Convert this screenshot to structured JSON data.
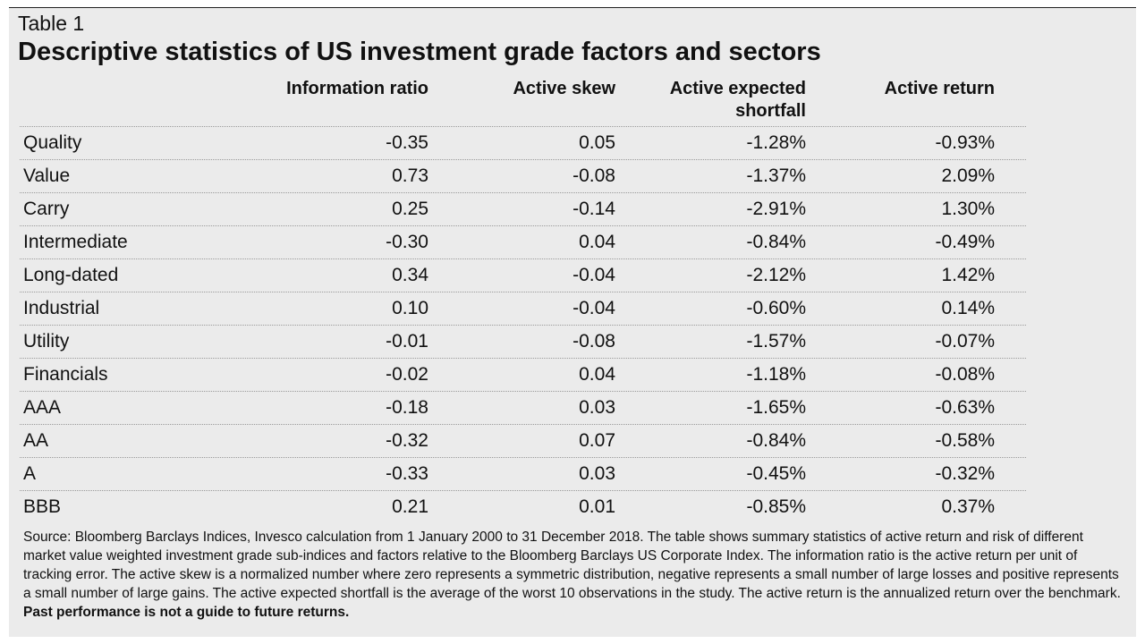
{
  "table": {
    "label": "Table 1",
    "title": "Descriptive statistics of US investment grade factors and sectors",
    "headers": {
      "information_ratio": "Information ratio",
      "active_skew": "Active skew",
      "active_expected_shortfall": "Active expected shortfall",
      "active_return": "Active return"
    },
    "rows": [
      {
        "name": "Quality",
        "ir": "-0.35",
        "skew": "0.05",
        "es": "-1.28%",
        "ret": "-0.93%"
      },
      {
        "name": "Value",
        "ir": "0.73",
        "skew": "-0.08",
        "es": "-1.37%",
        "ret": "2.09%"
      },
      {
        "name": "Carry",
        "ir": "0.25",
        "skew": "-0.14",
        "es": "-2.91%",
        "ret": "1.30%"
      },
      {
        "name": "Intermediate",
        "ir": "-0.30",
        "skew": "0.04",
        "es": "-0.84%",
        "ret": "-0.49%"
      },
      {
        "name": "Long-dated",
        "ir": "0.34",
        "skew": "-0.04",
        "es": "-2.12%",
        "ret": "1.42%"
      },
      {
        "name": "Industrial",
        "ir": "0.10",
        "skew": "-0.04",
        "es": "-0.60%",
        "ret": "0.14%"
      },
      {
        "name": "Utility",
        "ir": "-0.01",
        "skew": "-0.08",
        "es": "-1.57%",
        "ret": "-0.07%"
      },
      {
        "name": "Financials",
        "ir": "-0.02",
        "skew": "0.04",
        "es": "-1.18%",
        "ret": "-0.08%"
      },
      {
        "name": "AAA",
        "ir": "-0.18",
        "skew": "0.03",
        "es": "-1.65%",
        "ret": "-0.63%"
      },
      {
        "name": "AA",
        "ir": "-0.32",
        "skew": "0.07",
        "es": "-0.84%",
        "ret": "-0.58%"
      },
      {
        "name": "A",
        "ir": "-0.33",
        "skew": "0.03",
        "es": "-0.45%",
        "ret": "-0.32%"
      },
      {
        "name": "BBB",
        "ir": "0.21",
        "skew": "0.01",
        "es": "-0.85%",
        "ret": "0.37%"
      }
    ],
    "source_note": "Source: Bloomberg Barclays Indices, Invesco calculation from 1 January 2000 to 31 December 2018. The table shows summary statistics of active return and risk of different market value weighted investment grade sub-indices and factors relative to the Bloomberg Barclays US Corporate Index. The information ratio is the active return per unit of tracking error. The active skew is a normalized number where zero represents a symmetric distribution, negative represents a small number of large losses and positive represents a small number of large gains. The active expected shortfall is the average of the worst 10 observations in the study. The active return is the annualized return over the benchmark.",
    "disclaimer": "Past performance is not a guide to future returns."
  }
}
